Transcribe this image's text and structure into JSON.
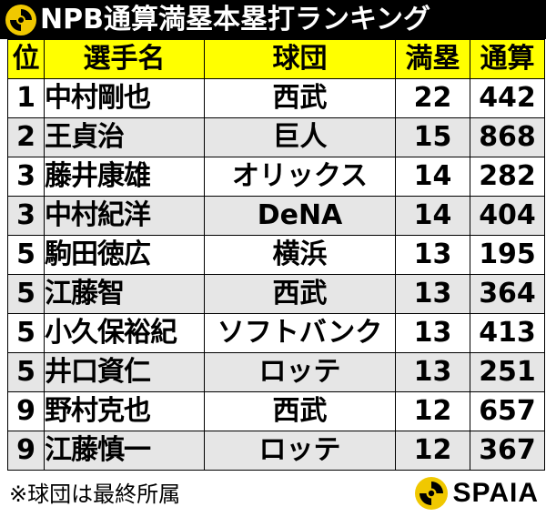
{
  "title": "NPB通算満塁本塁打ランキング",
  "header": {
    "rank": "位",
    "name": "選手名",
    "team": "球団",
    "grand_slams": "満塁",
    "career_hr": "通算"
  },
  "rows": [
    {
      "rank": "1",
      "name": "中村剛也",
      "team": "西武",
      "grand_slams": "22",
      "career_hr": "442"
    },
    {
      "rank": "2",
      "name": "王貞治",
      "team": "巨人",
      "grand_slams": "15",
      "career_hr": "868"
    },
    {
      "rank": "3",
      "name": "藤井康雄",
      "team": "オリックス",
      "grand_slams": "14",
      "career_hr": "282"
    },
    {
      "rank": "3",
      "name": "中村紀洋",
      "team": "DeNA",
      "grand_slams": "14",
      "career_hr": "404"
    },
    {
      "rank": "5",
      "name": "駒田徳広",
      "team": "横浜",
      "grand_slams": "13",
      "career_hr": "195"
    },
    {
      "rank": "5",
      "name": "江藤智",
      "team": "西武",
      "grand_slams": "13",
      "career_hr": "364"
    },
    {
      "rank": "5",
      "name": "小久保裕紀",
      "team": "ソフトバンク",
      "grand_slams": "13",
      "career_hr": "413"
    },
    {
      "rank": "5",
      "name": "井口資仁",
      "team": "ロッテ",
      "grand_slams": "13",
      "career_hr": "251"
    },
    {
      "rank": "9",
      "name": "野村克也",
      "team": "西武",
      "grand_slams": "12",
      "career_hr": "657"
    },
    {
      "rank": "9",
      "name": "江藤慎一",
      "team": "ロッテ",
      "grand_slams": "12",
      "career_hr": "367"
    }
  ],
  "footnote": "※球団は最終所属",
  "brand": {
    "name": "SPAIA",
    "icon": "spaia-logo-icon"
  },
  "colors": {
    "title_bg": "#000000",
    "header_bg": "#ffff00",
    "alt_row_bg": "#e6e6e6",
    "logo_yellow": "#f0c800"
  }
}
